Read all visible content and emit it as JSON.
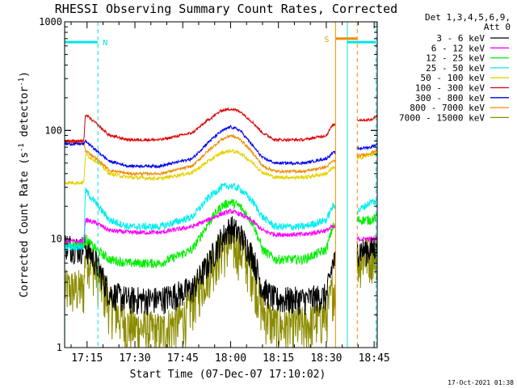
{
  "chart_data": {
    "type": "line",
    "title": "RHESSI Observing Summary Count Rates, Corrected",
    "xlabel": "Start Time (07-Dec-07 17:10:02)",
    "ylabel_main": "Corrected Count Rate (s",
    "ylabel_sup1": "-1",
    "ylabel_mid": " detector",
    "ylabel_sup2": "-1",
    "ylabel_end": ")",
    "yscale": "log",
    "ylim": [
      1,
      1000
    ],
    "xlim_minutes": [
      -0.03,
      97.97
    ],
    "x_ticks": [
      {
        "m": 7,
        "label": "17:15"
      },
      {
        "m": 22,
        "label": "17:30"
      },
      {
        "m": 37,
        "label": "17:45"
      },
      {
        "m": 52,
        "label": "18:00"
      },
      {
        "m": 67,
        "label": "18:15"
      },
      {
        "m": 82,
        "label": "18:30"
      },
      {
        "m": 97,
        "label": "18:45"
      }
    ],
    "y_ticks": [
      {
        "v": 1,
        "label": "1"
      },
      {
        "v": 10,
        "label": "10"
      },
      {
        "v": 100,
        "label": "100"
      },
      {
        "v": 1000,
        "label": "1000"
      }
    ],
    "legend_header": [
      "Det 1,3,4,5,6,9,",
      "Att 0"
    ],
    "footer_timestamp": "17-Oct-2021 01:38",
    "markers": [
      {
        "label": "N",
        "color": "#00e5e5"
      },
      {
        "label": "S",
        "color": "#f08c00"
      }
    ],
    "marker_lines": [
      {
        "m": 0,
        "color": "#00e5e5",
        "dash": false
      },
      {
        "m": 10.4,
        "color": "#00e5e5",
        "dash": true
      },
      {
        "m": 84.9,
        "color": "#f08c00",
        "dash": false
      },
      {
        "m": 88.6,
        "color": "#00e5e5",
        "dash": false
      },
      {
        "m": 91.7,
        "color": "#f08c00",
        "dash": true
      },
      {
        "m": 97.6,
        "color": "#00e5e5",
        "dash": true
      }
    ],
    "marker_bars": [
      {
        "from": 0,
        "to": 10.3,
        "value": 650,
        "color": "#00e5e5"
      },
      {
        "from": 88.6,
        "to": 97.6,
        "value": 650,
        "color": "#00e5e5"
      },
      {
        "from": 85.0,
        "to": 91.7,
        "value": 700,
        "color": "#f08c00"
      }
    ],
    "gaps": [
      [
        84.9,
        91.6
      ]
    ],
    "series": [
      {
        "name": "3 - 6 keV",
        "color": "#000000",
        "noise": 0.3,
        "points": [
          [
            0,
            9
          ],
          [
            5,
            8
          ],
          [
            6,
            9
          ],
          [
            10,
            6
          ],
          [
            14,
            3.2
          ],
          [
            20,
            2.8
          ],
          [
            30,
            2.8
          ],
          [
            40,
            3.5
          ],
          [
            45,
            6
          ],
          [
            49,
            10
          ],
          [
            52,
            13
          ],
          [
            55,
            11
          ],
          [
            59,
            7
          ],
          [
            62,
            3.5
          ],
          [
            66,
            2.8
          ],
          [
            75,
            2.8
          ],
          [
            82,
            3
          ],
          [
            84,
            6
          ],
          [
            91.7,
            8
          ],
          [
            96,
            8
          ],
          [
            97.97,
            9
          ]
        ]
      },
      {
        "name": "6 - 12 keV",
        "color": "#ff00ff",
        "noise": 0.05,
        "points": [
          [
            0,
            9.5
          ],
          [
            6,
            9.5
          ],
          [
            6.5,
            15
          ],
          [
            10,
            14
          ],
          [
            14,
            12
          ],
          [
            20,
            11.5
          ],
          [
            30,
            11.5
          ],
          [
            40,
            13
          ],
          [
            45,
            15
          ],
          [
            49,
            17
          ],
          [
            52,
            18
          ],
          [
            55,
            17
          ],
          [
            59,
            14.5
          ],
          [
            62,
            12
          ],
          [
            66,
            11
          ],
          [
            75,
            11
          ],
          [
            82,
            12
          ],
          [
            84,
            13
          ],
          [
            91.7,
            10
          ],
          [
            96,
            10
          ],
          [
            97.97,
            10
          ]
        ]
      },
      {
        "name": "12 - 25 keV",
        "color": "#00ee00",
        "noise": 0.1,
        "points": [
          [
            0,
            9
          ],
          [
            6,
            9
          ],
          [
            6.5,
            10
          ],
          [
            10,
            8
          ],
          [
            14,
            6.5
          ],
          [
            20,
            6
          ],
          [
            30,
            6
          ],
          [
            40,
            8
          ],
          [
            45,
            14
          ],
          [
            49,
            20
          ],
          [
            52,
            22
          ],
          [
            55,
            20
          ],
          [
            59,
            14
          ],
          [
            62,
            8
          ],
          [
            66,
            6.5
          ],
          [
            75,
            6.5
          ],
          [
            82,
            8
          ],
          [
            84,
            13
          ],
          [
            91.7,
            15
          ],
          [
            96,
            15
          ],
          [
            97.97,
            16
          ]
        ]
      },
      {
        "name": "25 - 50 keV",
        "color": "#00eeee",
        "noise": 0.08,
        "points": [
          [
            0,
            8.5
          ],
          [
            6,
            8.5
          ],
          [
            6.5,
            28
          ],
          [
            10,
            21
          ],
          [
            14,
            15
          ],
          [
            20,
            13
          ],
          [
            30,
            13
          ],
          [
            40,
            16
          ],
          [
            45,
            24
          ],
          [
            49,
            30
          ],
          [
            52,
            31
          ],
          [
            55,
            29
          ],
          [
            59,
            22
          ],
          [
            62,
            16
          ],
          [
            66,
            13
          ],
          [
            75,
            13
          ],
          [
            82,
            15
          ],
          [
            84,
            20
          ],
          [
            91.7,
            18
          ],
          [
            96,
            22
          ],
          [
            97.97,
            22
          ]
        ]
      },
      {
        "name": "50 - 100 keV",
        "color": "#e5d200",
        "noise": 0.04,
        "points": [
          [
            0,
            33
          ],
          [
            6,
            33
          ],
          [
            6.5,
            60
          ],
          [
            10,
            52
          ],
          [
            14,
            40
          ],
          [
            20,
            37
          ],
          [
            30,
            36
          ],
          [
            40,
            41
          ],
          [
            45,
            52
          ],
          [
            49,
            62
          ],
          [
            52,
            65
          ],
          [
            55,
            62
          ],
          [
            59,
            50
          ],
          [
            62,
            41
          ],
          [
            66,
            37
          ],
          [
            75,
            37
          ],
          [
            82,
            40
          ],
          [
            84,
            45
          ],
          [
            91.7,
            55
          ],
          [
            96,
            60
          ],
          [
            97.97,
            62
          ]
        ]
      },
      {
        "name": "100 - 300 keV",
        "color": "#e00000",
        "noise": 0.03,
        "points": [
          [
            0,
            80
          ],
          [
            6,
            80
          ],
          [
            6.5,
            140
          ],
          [
            10,
            115
          ],
          [
            14,
            90
          ],
          [
            20,
            82
          ],
          [
            30,
            82
          ],
          [
            40,
            95
          ],
          [
            45,
            125
          ],
          [
            49,
            152
          ],
          [
            52,
            158
          ],
          [
            55,
            150
          ],
          [
            59,
            118
          ],
          [
            62,
            95
          ],
          [
            66,
            82
          ],
          [
            75,
            82
          ],
          [
            82,
            90
          ],
          [
            84,
            112
          ],
          [
            91.7,
            125
          ],
          [
            96,
            125
          ],
          [
            97.97,
            138
          ]
        ]
      },
      {
        "name": "300 - 800 keV",
        "color": "#0000ee",
        "noise": 0.03,
        "points": [
          [
            0,
            75
          ],
          [
            6,
            75
          ],
          [
            6.5,
            80
          ],
          [
            10,
            65
          ],
          [
            14,
            52
          ],
          [
            20,
            47
          ],
          [
            30,
            47
          ],
          [
            40,
            55
          ],
          [
            45,
            78
          ],
          [
            49,
            98
          ],
          [
            52,
            108
          ],
          [
            55,
            100
          ],
          [
            59,
            72
          ],
          [
            62,
            56
          ],
          [
            66,
            50
          ],
          [
            75,
            50
          ],
          [
            82,
            55
          ],
          [
            84,
            62
          ],
          [
            91.7,
            68
          ],
          [
            96,
            70
          ],
          [
            97.97,
            75
          ]
        ]
      },
      {
        "name": "800 - 7000 keV",
        "color": "#f08c00",
        "noise": 0.03,
        "points": [
          [
            0,
            78
          ],
          [
            6,
            78
          ],
          [
            6.5,
            65
          ],
          [
            10,
            55
          ],
          [
            14,
            43
          ],
          [
            20,
            40
          ],
          [
            30,
            40
          ],
          [
            40,
            47
          ],
          [
            45,
            65
          ],
          [
            49,
            82
          ],
          [
            52,
            90
          ],
          [
            55,
            83
          ],
          [
            59,
            62
          ],
          [
            62,
            47
          ],
          [
            66,
            42
          ],
          [
            75,
            42
          ],
          [
            82,
            46
          ],
          [
            84,
            52
          ],
          [
            91.7,
            58
          ],
          [
            96,
            62
          ],
          [
            97.97,
            66
          ]
        ]
      },
      {
        "name": "7000 - 15000 keV",
        "color": "#8c8c00",
        "noise": 0.5,
        "points": [
          [
            0,
            3.5
          ],
          [
            6,
            3.5
          ],
          [
            6.5,
            8
          ],
          [
            10,
            5
          ],
          [
            14,
            2.5
          ],
          [
            20,
            1.6
          ],
          [
            30,
            1.4
          ],
          [
            38,
            2
          ],
          [
            42,
            3.5
          ],
          [
            46,
            6
          ],
          [
            49,
            8
          ],
          [
            52,
            9
          ],
          [
            55,
            8
          ],
          [
            59,
            5
          ],
          [
            62,
            2.2
          ],
          [
            66,
            1.6
          ],
          [
            75,
            1.6
          ],
          [
            82,
            2
          ],
          [
            84,
            3.5
          ],
          [
            91.7,
            6.5
          ],
          [
            96,
            7.5
          ],
          [
            97.97,
            8
          ]
        ]
      }
    ]
  }
}
